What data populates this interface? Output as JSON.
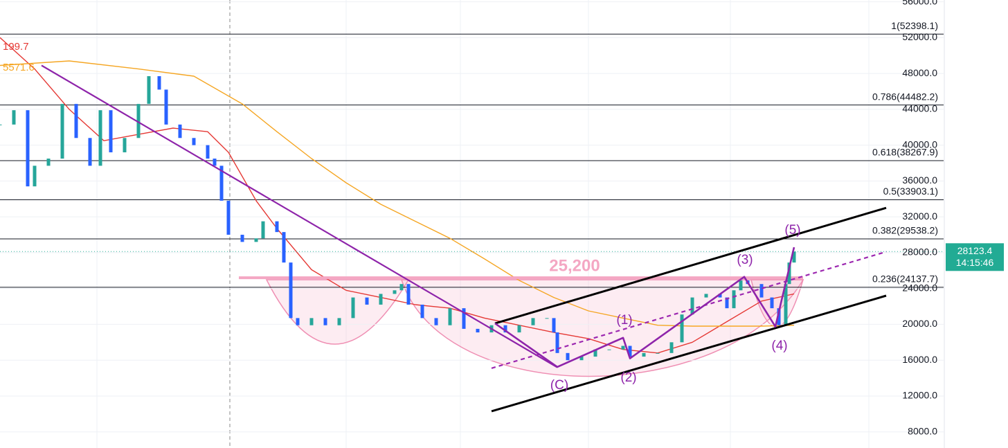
{
  "chart_data": {
    "type": "candlestick",
    "xlim": [
      0,
      1363
    ],
    "ylim": [
      6200,
      56200
    ],
    "yticks": [
      {
        "value": 8000,
        "label": "8000.0"
      },
      {
        "value": 12000,
        "label": "12000.0"
      },
      {
        "value": 16000,
        "label": "16000.0"
      },
      {
        "value": 20000,
        "label": "20000.0"
      },
      {
        "value": 24000,
        "label": "24000.0"
      },
      {
        "value": 28000,
        "label": "28000.0"
      },
      {
        "value": 32000,
        "label": "32000.0"
      },
      {
        "value": 36000,
        "label": "36000.0"
      },
      {
        "value": 40000,
        "label": "40000.0"
      },
      {
        "value": 44000,
        "label": "44000.0"
      },
      {
        "value": 48000,
        "label": "48000.0"
      },
      {
        "value": 52000,
        "label": "52000.0"
      },
      {
        "value": 56000,
        "label": "56000.0"
      }
    ],
    "x": [
      0,
      20,
      40,
      50,
      70,
      90,
      110,
      130,
      145,
      160,
      180,
      200,
      215,
      230,
      240,
      260,
      280,
      300,
      310,
      320,
      330,
      350,
      370,
      380,
      400,
      410,
      420,
      430,
      450,
      470,
      490,
      510,
      530,
      550,
      570,
      580,
      590,
      610,
      630,
      650,
      670,
      690,
      710,
      730,
      750,
      770,
      790,
      800,
      805,
      820,
      840,
      860,
      880,
      900,
      910,
      930,
      950,
      970,
      985,
      1000,
      1020,
      1040,
      1050,
      1060,
      1070,
      1080,
      1100,
      1115,
      1125,
      1135,
      1140,
      1147
    ],
    "close": [
      42300,
      43900,
      35400,
      37700,
      38500,
      44600,
      40800,
      37700,
      43900,
      39200,
      40800,
      44600,
      47700,
      46200,
      42300,
      40800,
      40000,
      38500,
      37700,
      33800,
      30000,
      29200,
      29600,
      31500,
      30300,
      26900,
      20700,
      19900,
      20700,
      19900,
      20700,
      23000,
      22200,
      23400,
      23800,
      24500,
      22200,
      20700,
      19900,
      21800,
      19500,
      19100,
      19900,
      19100,
      19900,
      20700,
      20700,
      19100,
      16800,
      16000,
      16400,
      17200,
      17200,
      17600,
      16400,
      16800,
      16800,
      18000,
      21100,
      23000,
      23400,
      23000,
      21800,
      23800,
      24900,
      24500,
      23000,
      21800,
      19900,
      24500,
      26900,
      28123.4
    ],
    "up_color": "#26a69a",
    "down_color": "#2962ff",
    "moving_averages": [
      {
        "color": "#e53935",
        "label": "199.7",
        "x": [
          0,
          50,
          100,
          150,
          200,
          250,
          300,
          330,
          370,
          400,
          450,
          500,
          550,
          600,
          650,
          700,
          750,
          800,
          850,
          900,
          950,
          1000,
          1050,
          1100,
          1147
        ],
        "values": [
          52000,
          48500,
          44000,
          40500,
          41200,
          41900,
          41500,
          39200,
          33800,
          30700,
          26100,
          23800,
          23000,
          22200,
          21800,
          20700,
          19900,
          19100,
          18400,
          17200,
          16800,
          18000,
          20300,
          22600,
          23400
        ]
      },
      {
        "color": "#f5a623",
        "label": "5571.6",
        "x": [
          0,
          100,
          200,
          280,
          350,
          400,
          450,
          500,
          550,
          600,
          650,
          700,
          750,
          800,
          850,
          900,
          950,
          1000,
          1050,
          1100,
          1147
        ],
        "values": [
          48900,
          49400,
          48500,
          47700,
          44600,
          41500,
          38500,
          35800,
          33400,
          31500,
          29600,
          27300,
          24900,
          23000,
          21500,
          20700,
          19900,
          19800,
          19800,
          19800,
          19900
        ]
      }
    ],
    "fib_levels": [
      {
        "value": 52398.1,
        "label": "1(52398.1)"
      },
      {
        "value": 44482.2,
        "label": "0.786(44482.2)"
      },
      {
        "value": 38267.9,
        "label": "0.618(38267.9)"
      },
      {
        "value": 33903.1,
        "label": "0.5(33903.1)"
      },
      {
        "value": 29538.2,
        "label": "0.382(29538.2)"
      },
      {
        "value": 24137.7,
        "label": "0.236(24137.7)"
      }
    ],
    "last_price": 28123.4,
    "countdown": "14:15:46",
    "last_price_color": "#22ab94",
    "neckline": {
      "value": 25200,
      "label": "25,200",
      "x": [
        345,
        1160
      ],
      "color": "#f4a7c3"
    },
    "trendlines": [
      {
        "color": "#8e24aa",
        "x": [
          60,
          805
        ],
        "values": [
          48900,
          15200
        ]
      },
      {
        "color": "#000000",
        "x": [
          715,
          1280
        ],
        "values": [
          20100,
          33000
        ]
      },
      {
        "color": "#000000",
        "x": [
          710,
          1280
        ],
        "values": [
          10300,
          23200
        ]
      },
      {
        "color": "#9c27b0",
        "dashed": true,
        "x": [
          710,
          1280
        ],
        "values": [
          15100,
          28100
        ]
      }
    ],
    "wave_path": {
      "color": "#8e24aa",
      "x": [
        715,
        805,
        900,
        910,
        1075,
        1120,
        1147
      ],
      "values": [
        20100,
        15250,
        18500,
        16200,
        25300,
        19750,
        28600
      ]
    },
    "wave_labels": [
      "(C)",
      "(1)",
      "(2)",
      "(3)",
      "(4)",
      "(5)"
    ]
  }
}
